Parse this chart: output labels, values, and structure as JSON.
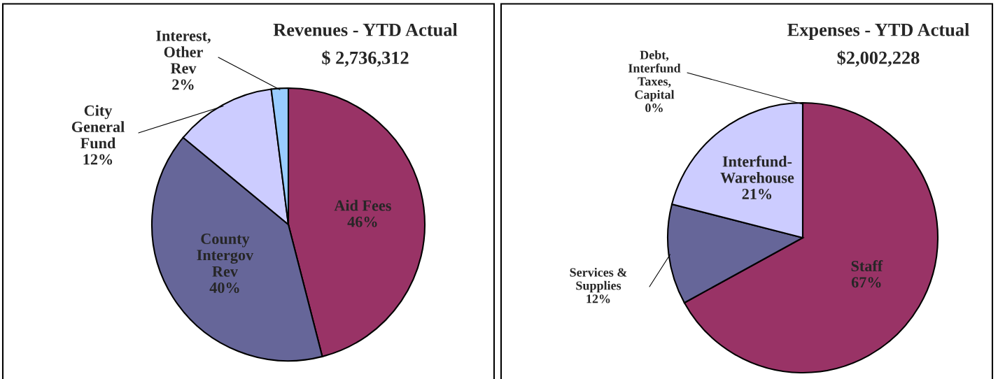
{
  "chart_data": [
    {
      "type": "pie",
      "title": "Revenues - YTD Actual",
      "subtitle": "$ 2,736,312",
      "categories": [
        "Aid Fees",
        "County\nIntergov\nRev",
        "City\nGeneral\nFund",
        "Interest,\nOther\nRev"
      ],
      "values": [
        46,
        40,
        12,
        2
      ],
      "value_labels": [
        "46%",
        "40%",
        "12%",
        "2%"
      ],
      "colors": [
        "#993366",
        "#666699",
        "#ccccff",
        "#99ccff"
      ]
    },
    {
      "type": "pie",
      "title": "Expenses - YTD Actual",
      "subtitle": "$2,002,228",
      "categories": [
        "Staff",
        "Services &\nSupplies",
        "Interfund-\nWarehouse",
        "Debt,\nInterfund\nTaxes,\nCapital"
      ],
      "values": [
        67,
        12,
        21,
        0
      ],
      "value_labels": [
        "67%",
        "12%",
        "21%",
        "0%"
      ],
      "colors": [
        "#993366",
        "#666699",
        "#ccccff",
        "#99ccff"
      ]
    }
  ]
}
